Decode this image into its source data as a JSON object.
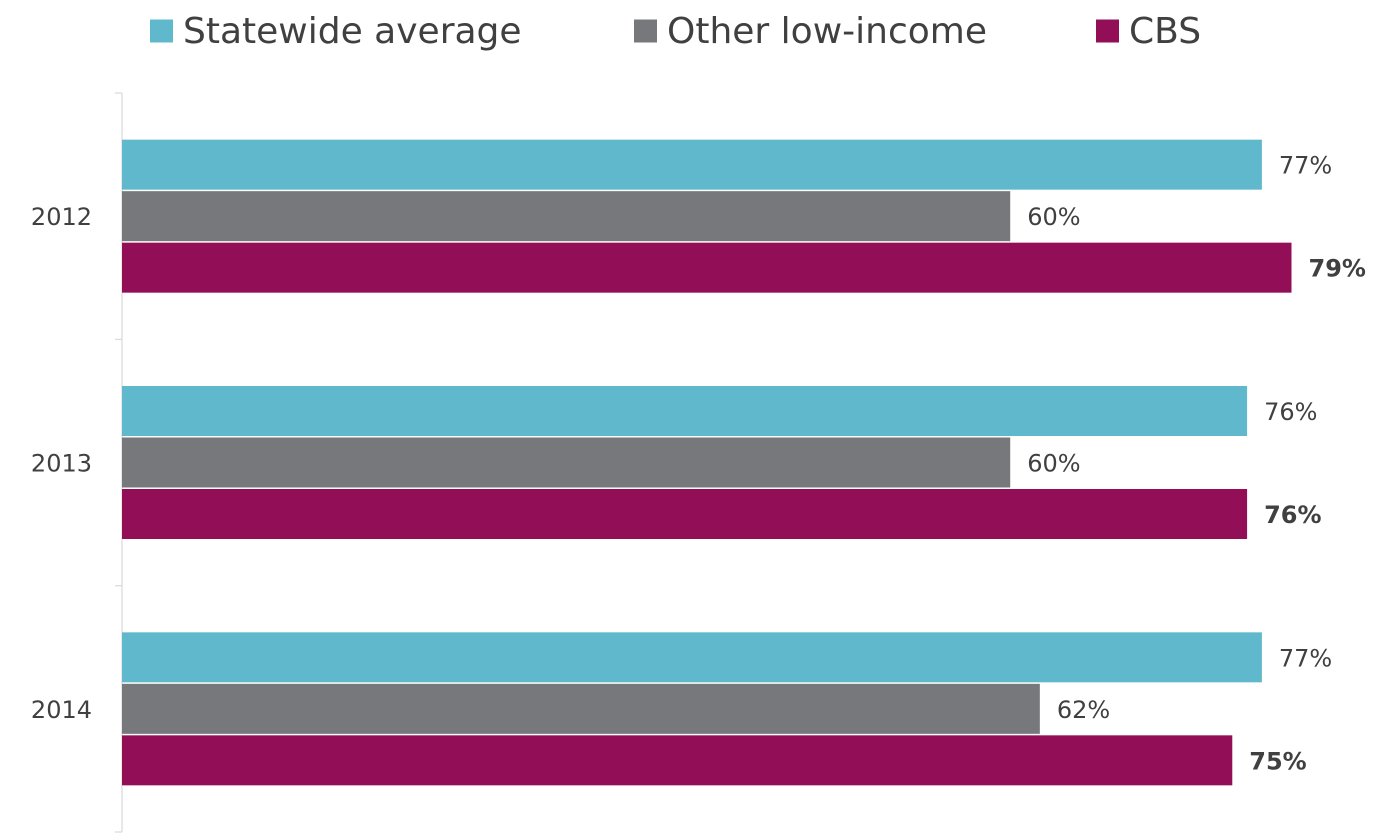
{
  "chart_data": {
    "type": "bar",
    "orientation": "horizontal",
    "title": "",
    "xlabel": "",
    "ylabel": "",
    "categories": [
      "2012",
      "2013",
      "2014"
    ],
    "series": [
      {
        "name": "Statewide average",
        "values": [
          77,
          76,
          77
        ],
        "labels": [
          "77%",
          "76%",
          "77%"
        ],
        "color": "#60B8CC",
        "label_bold": false
      },
      {
        "name": "Other low-income",
        "values": [
          60,
          60,
          62
        ],
        "labels": [
          "60%",
          "60%",
          "62%"
        ],
        "color": "#77787B",
        "label_bold": false
      },
      {
        "name": "CBS",
        "values": [
          79,
          76,
          75
        ],
        "labels": [
          "79%",
          "76%",
          "75%"
        ],
        "color": "#920F58",
        "label_bold": true
      }
    ],
    "xlim": [
      0,
      100
    ],
    "grid": false,
    "legend": "top",
    "value_axis_visible": false,
    "label_color": "#404040",
    "axis_color": "#D9D9D9"
  }
}
